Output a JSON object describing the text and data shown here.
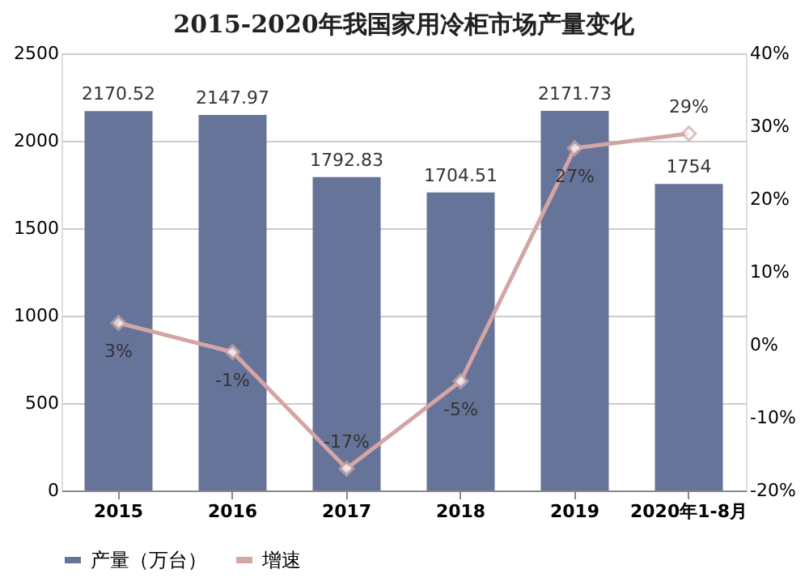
{
  "chart_data": {
    "type": "bar",
    "title": "2015-2020年我国家用冷柜市场产量变化",
    "categories": [
      "2015",
      "2016",
      "2017",
      "2018",
      "2019",
      "2020年1-8月"
    ],
    "series": [
      {
        "name": "产量（万台）",
        "color": "#67749a",
        "values": [
          2170.52,
          2147.97,
          1792.83,
          1704.51,
          2171.73,
          1754
        ]
      },
      {
        "name": "增速",
        "type": "line",
        "axis": "y2",
        "color": "#d4a5a5",
        "marker": "diamond",
        "values": [
          3,
          -1,
          -17,
          -5,
          27,
          29
        ],
        "value_labels": [
          "3%",
          "-1%",
          "-17%",
          "-5%",
          "27%",
          "29%"
        ]
      }
    ],
    "ylim": [
      0,
      2500
    ],
    "yticks": [
      0,
      500,
      1000,
      1500,
      2000,
      2500
    ],
    "y2lim": [
      -20,
      40
    ],
    "y2ticks": [
      {
        "value": -20,
        "label": "-20%"
      },
      {
        "value": -10,
        "label": "-10%"
      },
      {
        "value": 0,
        "label": "0%"
      },
      {
        "value": 10,
        "label": "10%"
      },
      {
        "value": 20,
        "label": "20%"
      },
      {
        "value": 30,
        "label": "30%"
      },
      {
        "value": 40,
        "label": "40%"
      }
    ],
    "data_labels": true,
    "grid": "y",
    "legend": "bottom"
  }
}
